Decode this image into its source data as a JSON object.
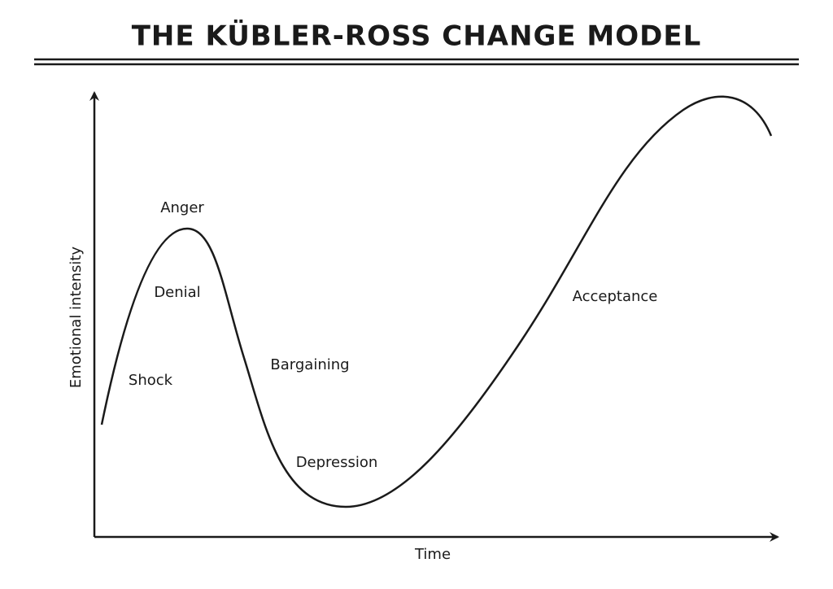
{
  "title": "THE KÜBLER-ROSS CHANGE MODEL",
  "axes": {
    "y_label": "Emotional intensity",
    "x_label": "Time"
  },
  "stages": [
    "Shock",
    "Denial",
    "Anger",
    "Bargaining",
    "Depression",
    "Acceptance"
  ]
}
